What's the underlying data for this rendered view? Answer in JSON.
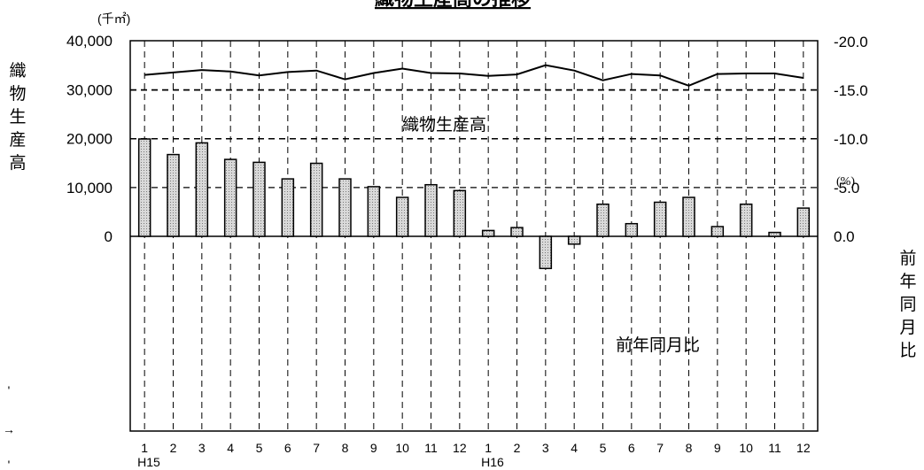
{
  "chart_data": {
    "type": "bar+line",
    "title": "織物生産高の推移",
    "left_unit": "(千㎡)",
    "right_unit": "(%)",
    "left_axis_label": "織物生産高",
    "right_axis_label": "前年同月比",
    "line_series_name": "織物生産高",
    "bar_series_name": "前年同月比",
    "left_ticks": [
      "40,000",
      "30,000",
      "20,000",
      "10,000",
      "0"
    ],
    "right_ticks": [
      "0.0",
      "-5.0",
      "-10.0",
      "-15.0",
      "-20.0"
    ],
    "ylim_left": [
      0,
      40000
    ],
    "ylim_right": [
      -20,
      0
    ],
    "categories": [
      "1",
      "2",
      "3",
      "4",
      "5",
      "6",
      "7",
      "8",
      "9",
      "10",
      "11",
      "12",
      "1",
      "2",
      "3",
      "4",
      "5",
      "6",
      "7",
      "8",
      "9",
      "10",
      "11",
      "12"
    ],
    "year_labels": [
      {
        "index": 0,
        "label": "H15"
      },
      {
        "index": 12,
        "label": "H16"
      }
    ],
    "line_values": [
      33000,
      33500,
      34000,
      33700,
      32900,
      33600,
      33900,
      32100,
      33400,
      34300,
      33400,
      33300,
      32800,
      33100,
      35000,
      33900,
      31900,
      33200,
      32900,
      30800,
      33200,
      33300,
      33300,
      32400
    ],
    "bar_values": [
      -10.0,
      -8.4,
      -9.6,
      -7.9,
      -7.6,
      -5.9,
      -7.5,
      -5.9,
      -5.1,
      -4.0,
      -5.3,
      -4.7,
      -0.6,
      -0.9,
      3.3,
      0.8,
      -3.3,
      -1.3,
      -3.5,
      -4.0,
      -1.0,
      -3.3,
      -0.4,
      -2.9
    ],
    "grid": true,
    "legend": "inline labels"
  },
  "margin_marks": [
    "'",
    "→",
    "'"
  ]
}
